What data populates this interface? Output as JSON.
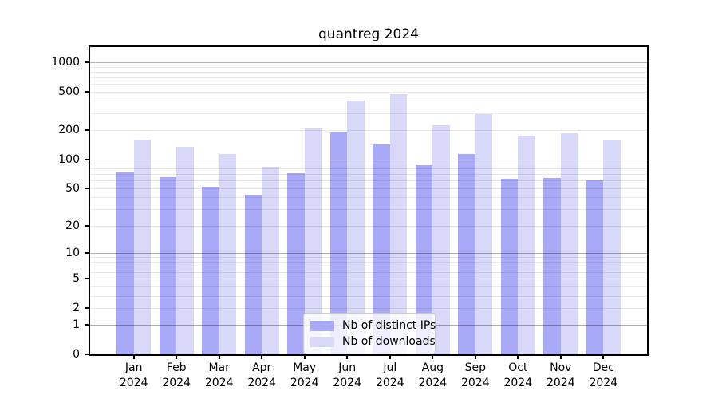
{
  "title": "quantreg 2024",
  "chart_data": {
    "type": "bar",
    "title": "quantreg 2024",
    "categories": [
      "Jan",
      "Feb",
      "Mar",
      "Apr",
      "May",
      "Jun",
      "Jul",
      "Aug",
      "Sep",
      "Oct",
      "Nov",
      "Dec"
    ],
    "year_label": "2024",
    "series": [
      {
        "name": "Nb of distinct IPs",
        "color": "#a8a9f7",
        "values": [
          73,
          65,
          52,
          43,
          71,
          190,
          142,
          87,
          114,
          63,
          64,
          60
        ]
      },
      {
        "name": "Nb of downloads",
        "color": "#d8d9f9",
        "values": [
          160,
          134,
          114,
          84,
          207,
          405,
          467,
          226,
          290,
          175,
          187,
          155
        ]
      }
    ],
    "y_scale": "log1p",
    "y_ticks": [
      0,
      1,
      2,
      5,
      10,
      20,
      50,
      100,
      200,
      500,
      1000
    ],
    "ylim": [
      0,
      1430
    ],
    "grid": true,
    "legend_position": "lower center"
  }
}
